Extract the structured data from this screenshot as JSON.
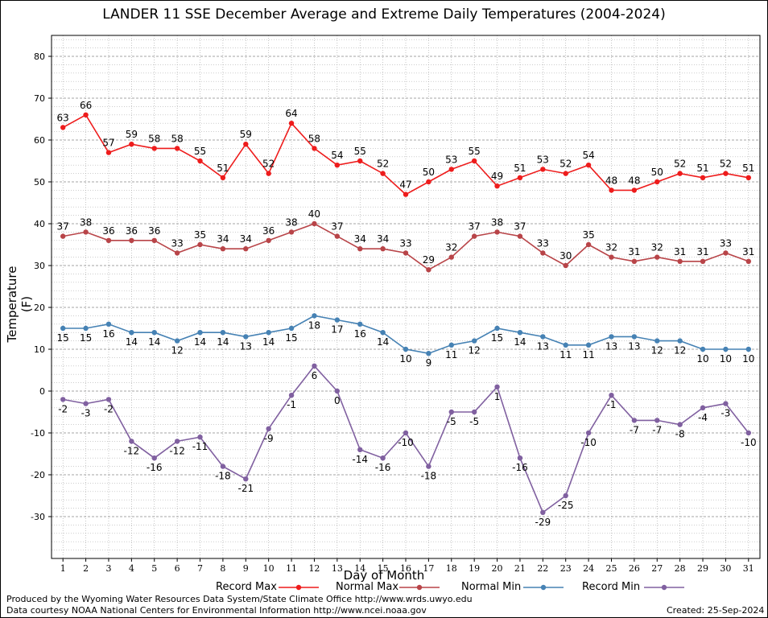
{
  "chart_data": {
    "type": "line",
    "title": "LANDER 11 SSE December Average and Extreme Daily Temperatures (2004-2024)",
    "xlabel": "Day of Month",
    "ylabel": "Temperature (F)",
    "x": [
      1,
      2,
      3,
      4,
      5,
      6,
      7,
      8,
      9,
      10,
      11,
      12,
      13,
      14,
      15,
      16,
      17,
      18,
      19,
      20,
      21,
      22,
      23,
      24,
      25,
      26,
      27,
      28,
      29,
      30,
      31
    ],
    "xlim": [
      0.5,
      31.5
    ],
    "ylim": [
      -40,
      85
    ],
    "yticks": [
      -30,
      -20,
      -10,
      0,
      10,
      20,
      30,
      40,
      50,
      60,
      70,
      80
    ],
    "grid": true,
    "legend_position": "bottom",
    "series": [
      {
        "name": "Record Max",
        "color": "#ee1c1c",
        "label_position": "above",
        "values": [
          63,
          66,
          57,
          59,
          58,
          58,
          55,
          51,
          59,
          52,
          64,
          58,
          54,
          55,
          52,
          47,
          50,
          53,
          55,
          49,
          51,
          53,
          52,
          54,
          48,
          48,
          50,
          52,
          51,
          52,
          51
        ]
      },
      {
        "name": "Normal Max",
        "color": "#b84448",
        "label_position": "above",
        "values": [
          37,
          38,
          36,
          36,
          36,
          33,
          35,
          34,
          34,
          36,
          38,
          40,
          37,
          34,
          34,
          33,
          29,
          32,
          37,
          38,
          37,
          33,
          30,
          35,
          32,
          31,
          32,
          31,
          31,
          33,
          31
        ]
      },
      {
        "name": "Normal Min",
        "color": "#4682b4",
        "label_position": "below",
        "values": [
          15,
          15,
          16,
          14,
          14,
          12,
          14,
          14,
          13,
          14,
          15,
          18,
          17,
          16,
          14,
          10,
          9,
          11,
          12,
          15,
          14,
          13,
          11,
          11,
          13,
          13,
          12,
          12,
          10,
          10,
          10
        ]
      },
      {
        "name": "Record Min",
        "color": "#8060a0",
        "label_position": "below",
        "values": [
          -2,
          -3,
          -2,
          -12,
          -16,
          -12,
          -11,
          -18,
          -21,
          -9,
          -1,
          6,
          0,
          -14,
          -16,
          -10,
          -18,
          -5,
          -5,
          1,
          -16,
          -29,
          -25,
          -10,
          -1,
          -7,
          -7,
          -8,
          -4,
          -3,
          -10
        ]
      }
    ]
  },
  "footer": {
    "produced_by": "Produced by the Wyoming Water Resources Data System/State Climate Office http://www.wrds.uwyo.edu",
    "courtesy": "Data courtesy NOAA National Centers for Environmental Information http://www.ncei.noaa.gov",
    "created": "Created:  25-Sep-2024"
  }
}
